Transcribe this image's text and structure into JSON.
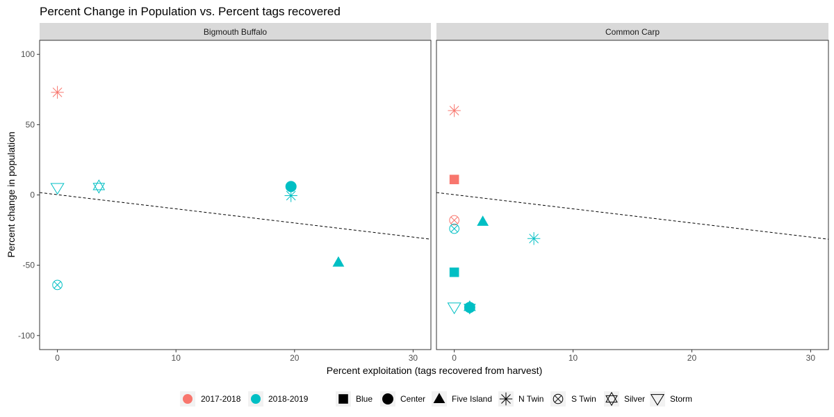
{
  "chart_data": {
    "type": "scatter",
    "title": "Percent Change in Population vs. Percent tags recovered",
    "xlabel": "Percent exploitation (tags recovered from harvest)",
    "ylabel": "Percent change in population",
    "xlim": [
      -1.5,
      31.5
    ],
    "ylim": [
      -110,
      110
    ],
    "x_ticks": [
      0,
      10,
      20,
      30
    ],
    "y_ticks": [
      -100,
      -50,
      0,
      50,
      100
    ],
    "colors": {
      "2017-2018": "#F8766D",
      "2018-2019": "#00BFC4"
    },
    "color_legend": [
      "2017-2018",
      "2018-2019"
    ],
    "shape_legend": [
      {
        "label": "Blue",
        "shape": "square"
      },
      {
        "label": "Center",
        "shape": "circle"
      },
      {
        "label": "Five Island",
        "shape": "triangle"
      },
      {
        "label": "N Twin",
        "shape": "asterisk"
      },
      {
        "label": "S Twin",
        "shape": "circle-x"
      },
      {
        "label": "Silver",
        "shape": "star-of-david"
      },
      {
        "label": "Storm",
        "shape": "triangle-down"
      }
    ],
    "legend_position": "bottom",
    "grid": false,
    "panels": [
      {
        "strip": "Bigmouth Buffalo",
        "trend": {
          "x": [
            -1.5,
            31.5
          ],
          "y": [
            1.7,
            -31.5
          ]
        },
        "points": [
          {
            "x": 0,
            "y": 73,
            "group": "2017-2018",
            "lake": "N Twin"
          },
          {
            "x": 0,
            "y": 5,
            "group": "2018-2019",
            "lake": "Storm"
          },
          {
            "x": 3.5,
            "y": 6,
            "group": "2018-2019",
            "lake": "Silver"
          },
          {
            "x": 19.7,
            "y": 6,
            "group": "2018-2019",
            "lake": "Center"
          },
          {
            "x": 19.7,
            "y": -0.5,
            "group": "2018-2019",
            "lake": "N Twin"
          },
          {
            "x": 23.7,
            "y": -48,
            "group": "2018-2019",
            "lake": "Five Island"
          },
          {
            "x": 0,
            "y": -64,
            "group": "2018-2019",
            "lake": "S Twin"
          }
        ]
      },
      {
        "strip": "Common Carp",
        "trend": {
          "x": [
            -1.5,
            31.5
          ],
          "y": [
            1.7,
            -31.5
          ]
        },
        "points": [
          {
            "x": 0,
            "y": 60,
            "group": "2017-2018",
            "lake": "N Twin"
          },
          {
            "x": 0,
            "y": 11,
            "group": "2017-2018",
            "lake": "Blue"
          },
          {
            "x": 0,
            "y": -18,
            "group": "2017-2018",
            "lake": "S Twin"
          },
          {
            "x": 0,
            "y": -24,
            "group": "2018-2019",
            "lake": "S Twin"
          },
          {
            "x": 2.4,
            "y": -19,
            "group": "2018-2019",
            "lake": "Five Island"
          },
          {
            "x": 6.7,
            "y": -31,
            "group": "2018-2019",
            "lake": "N Twin"
          },
          {
            "x": 0,
            "y": -55,
            "group": "2018-2019",
            "lake": "Blue"
          },
          {
            "x": 0,
            "y": -80,
            "group": "2018-2019",
            "lake": "Storm"
          },
          {
            "x": 1.3,
            "y": -80,
            "group": "2018-2019",
            "lake": "Center"
          },
          {
            "x": 1.3,
            "y": -80,
            "group": "2018-2019",
            "lake": "Silver"
          }
        ]
      }
    ]
  }
}
